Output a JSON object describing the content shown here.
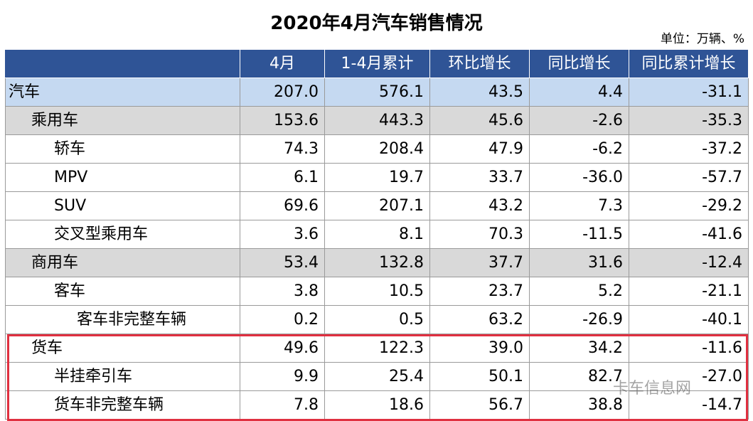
{
  "header": {
    "title": "2020年4月汽车销售情况",
    "unit": "单位：万辆、%"
  },
  "table": {
    "columns": [
      "",
      "4月",
      "1-4月累计",
      "环比增长",
      "同比增长",
      "同比累计增长"
    ],
    "rows": [
      [
        "汽车",
        "207.0",
        "576.1",
        "43.5",
        "4.4",
        "-31.1"
      ],
      [
        "乘用车",
        "153.6",
        "443.3",
        "45.6",
        "-2.6",
        "-35.3"
      ],
      [
        "轿车",
        "74.3",
        "208.4",
        "47.9",
        "-6.2",
        "-37.2"
      ],
      [
        "MPV",
        "6.1",
        "19.7",
        "33.7",
        "-36.0",
        "-57.7"
      ],
      [
        "SUV",
        "69.6",
        "207.1",
        "43.2",
        "7.3",
        "-29.2"
      ],
      [
        "交叉型乘用车",
        "3.6",
        "8.1",
        "70.3",
        "-11.5",
        "-41.6"
      ],
      [
        "商用车",
        "53.4",
        "132.8",
        "37.7",
        "31.6",
        "-12.4"
      ],
      [
        "客车",
        "3.8",
        "10.5",
        "23.7",
        "5.2",
        "-21.1"
      ],
      [
        "客车非完整车辆",
        "0.2",
        "0.5",
        "63.2",
        "-26.9",
        "-40.1"
      ],
      [
        "货车",
        "49.6",
        "122.3",
        "39.0",
        "34.2",
        "-11.6"
      ],
      [
        "半挂牵引车",
        "9.9",
        "25.4",
        "50.1",
        "82.7",
        "-27.0"
      ],
      [
        "货车非完整车辆",
        "7.8",
        "18.6",
        "56.7",
        "38.8",
        "-14.7"
      ]
    ]
  },
  "watermark": "卡车信息网"
}
